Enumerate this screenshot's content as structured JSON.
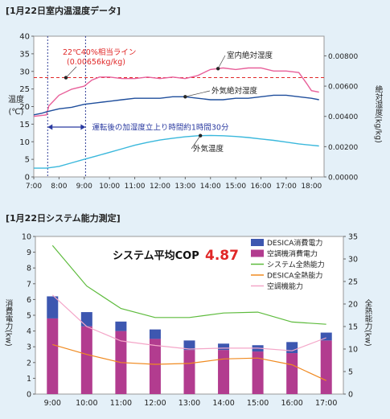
{
  "charts": {
    "top_title": "[1月22日室内温湿度データ]",
    "bottom_title": "[1月22日システム能力測定]"
  },
  "chart_data": [
    {
      "type": "line",
      "title": "[1月22日室内温湿度データ]",
      "ylabel_left": [
        "温度",
        "(℃)"
      ],
      "ylabel_right": "絶対湿度(kg/kg)",
      "x_ticks": [
        "7:00",
        "8:00",
        "9:00",
        "10:00",
        "11:00",
        "12:00",
        "13:00",
        "14:00",
        "15:00",
        "16:00",
        "17:00",
        "18:00"
      ],
      "y_left_ticks": [
        "0",
        "5",
        "10",
        "15",
        "20",
        "25",
        "30",
        "35",
        "40"
      ],
      "y_right_ticks": [
        "0.00000",
        "0.00200",
        "0.00400",
        "0.00600",
        "0.00800"
      ],
      "ylim_left": [
        0,
        40
      ],
      "ylim_right": [
        0,
        0.0093
      ],
      "x_range_hours": [
        7,
        18.5
      ],
      "grid": false,
      "series": [
        {
          "name": "室内絶対湿度",
          "axis": "right",
          "color": "#e8609a",
          "x": [
            7.0,
            7.5,
            7.6,
            8.0,
            8.5,
            9.0,
            9.3,
            9.6,
            10.0,
            10.5,
            11.0,
            11.5,
            12.0,
            12.5,
            13.0,
            13.5,
            14.0,
            14.5,
            15.0,
            15.5,
            16.0,
            16.5,
            17.0,
            17.5,
            17.8,
            18.0,
            18.3
          ],
          "y": [
            0.004,
            0.0041,
            0.0047,
            0.0054,
            0.0058,
            0.006,
            0.0064,
            0.0066,
            0.0066,
            0.0065,
            0.0065,
            0.0066,
            0.0065,
            0.0066,
            0.0065,
            0.0067,
            0.0071,
            0.0072,
            0.0071,
            0.0072,
            0.0072,
            0.007,
            0.007,
            0.0069,
            0.0062,
            0.0057,
            0.0056
          ]
        },
        {
          "name": "外気絶対湿度",
          "axis": "right",
          "color": "#1f4e9c",
          "x": [
            7.0,
            7.3,
            7.5,
            8.0,
            8.5,
            9.0,
            9.5,
            10.0,
            10.5,
            11.0,
            11.5,
            12.0,
            12.5,
            13.0,
            13.5,
            14.0,
            14.5,
            15.0,
            15.5,
            16.0,
            16.5,
            17.0,
            17.5,
            18.0,
            18.3
          ],
          "y": [
            0.0041,
            0.0042,
            0.0043,
            0.0045,
            0.0046,
            0.0048,
            0.0049,
            0.005,
            0.0051,
            0.0052,
            0.0052,
            0.0052,
            0.0053,
            0.0053,
            0.0052,
            0.0051,
            0.0051,
            0.0052,
            0.0052,
            0.0053,
            0.0054,
            0.0054,
            0.0053,
            0.0052,
            0.0051
          ]
        },
        {
          "name": "外気温度",
          "axis": "left",
          "color": "#3ab8dc",
          "x": [
            7.0,
            7.5,
            8.0,
            8.5,
            9.0,
            9.5,
            10.0,
            10.5,
            11.0,
            11.5,
            12.0,
            12.5,
            13.0,
            13.5,
            14.0,
            14.5,
            15.0,
            15.5,
            16.0,
            16.5,
            17.0,
            17.5,
            18.0,
            18.3
          ],
          "y": [
            2.5,
            2.5,
            3.0,
            4.0,
            5.0,
            6.0,
            7.0,
            8.0,
            9.0,
            9.8,
            10.5,
            11.0,
            11.4,
            11.7,
            11.8,
            11.7,
            11.5,
            11.2,
            10.8,
            10.4,
            9.9,
            9.4,
            9.0,
            8.8
          ]
        }
      ],
      "reference_line": {
        "label": "22℃40%相当ライン",
        "label2": "(0.00656kg/kg)",
        "value": 0.00656,
        "axis": "right",
        "color": "#e02828"
      },
      "vertical_lines": [
        7.55,
        9.05
      ],
      "span_annotation": {
        "from": 7.55,
        "to": 9.05,
        "text": "運転後の加湿度立上り時間約1時間30分"
      }
    },
    {
      "type": "bar",
      "title": "[1月22日システム能力測定]",
      "ylabel_left": "消費電力(kw)",
      "ylabel_right": "全熱能力(kw)",
      "categories": [
        "9:00",
        "10:00",
        "11:00",
        "12:00",
        "13:00",
        "14:00",
        "15:00",
        "16:00",
        "17:00"
      ],
      "ylim_left": [
        0,
        10
      ],
      "ylim_right": [
        0,
        35
      ],
      "y_left_ticks": [
        "0",
        "1",
        "2",
        "3",
        "4",
        "5",
        "6",
        "7",
        "8",
        "9",
        "10"
      ],
      "y_right_ticks": [
        "0",
        "5",
        "10",
        "15",
        "20",
        "25",
        "30",
        "35"
      ],
      "annotation": {
        "label": "システム平均COP",
        "value": "4.87"
      },
      "legend_position": "top-right",
      "series": [
        {
          "name": "DESICA消費電力",
          "type": "bar-stack",
          "color": "#3d57b0",
          "values": [
            1.4,
            0.9,
            0.6,
            0.6,
            0.6,
            0.4,
            0.4,
            0.7,
            0.5
          ]
        },
        {
          "name": "空調機消費電力",
          "type": "bar-stack",
          "color": "#b23c8f",
          "values": [
            4.8,
            4.3,
            4.0,
            3.5,
            2.8,
            2.8,
            2.7,
            2.6,
            3.4
          ]
        },
        {
          "name": "システム全熱能力",
          "type": "line",
          "axis": "right",
          "color": "#5dbb3c",
          "values": [
            33.0,
            24.0,
            19.0,
            17.0,
            17.0,
            18.0,
            18.2,
            16.0,
            15.5
          ]
        },
        {
          "name": "DESICA全熱能力",
          "type": "line",
          "axis": "right",
          "color": "#f08a20",
          "values": [
            11.0,
            8.8,
            7.0,
            6.6,
            6.8,
            7.8,
            8.0,
            6.5,
            3.0
          ]
        },
        {
          "name": "空調機能力",
          "type": "line",
          "axis": "right",
          "color": "#f4a6c8",
          "values": [
            22.0,
            15.0,
            11.8,
            10.8,
            10.0,
            10.2,
            10.2,
            9.6,
            12.5
          ]
        }
      ]
    }
  ]
}
